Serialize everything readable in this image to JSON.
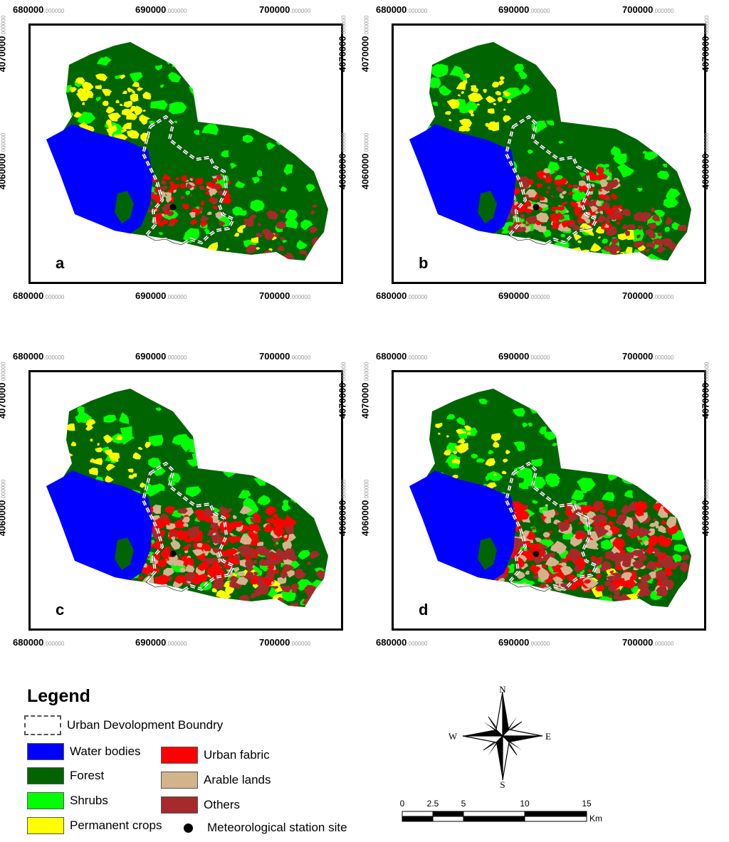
{
  "axes": {
    "x_ticks": [
      {
        "main": "680000",
        "dec": ".000000"
      },
      {
        "main": "690000",
        "dec": ".000000"
      },
      {
        "main": "700000",
        "dec": ".000000"
      }
    ],
    "y_ticks": [
      {
        "main": "4070000",
        "dec": ".000000"
      },
      {
        "main": "4060000",
        "dec": ".000000"
      }
    ]
  },
  "panels": [
    {
      "label": "a",
      "urban_level": 0.12,
      "scene": "a"
    },
    {
      "label": "b",
      "urban_level": 0.35,
      "scene": "b"
    },
    {
      "label": "c",
      "urban_level": 0.65,
      "scene": "c"
    },
    {
      "label": "d",
      "urban_level": 0.8,
      "scene": "d"
    }
  ],
  "legend": {
    "title": "Legend",
    "boundary": "Urban Devolopment Boundry",
    "items": [
      {
        "label": "Water bodies",
        "color": "#0000FF"
      },
      {
        "label": "Forest",
        "color": "#006400"
      },
      {
        "label": "Shrubs",
        "color": "#00FF00"
      },
      {
        "label": "Permanent crops",
        "color": "#FFFF00"
      },
      {
        "label": "Urban fabric",
        "color": "#FF0000"
      },
      {
        "label": "Arable lands",
        "color": "#D2B48C"
      },
      {
        "label": "Others",
        "color": "#A52A2A"
      }
    ],
    "station": "Meteorological station site"
  },
  "compass": {
    "n": "N",
    "s": "S",
    "e": "E",
    "w": "W"
  },
  "scale": {
    "ticks": [
      "0",
      "2.5",
      "5",
      "10",
      "15"
    ],
    "unit": "Km"
  }
}
